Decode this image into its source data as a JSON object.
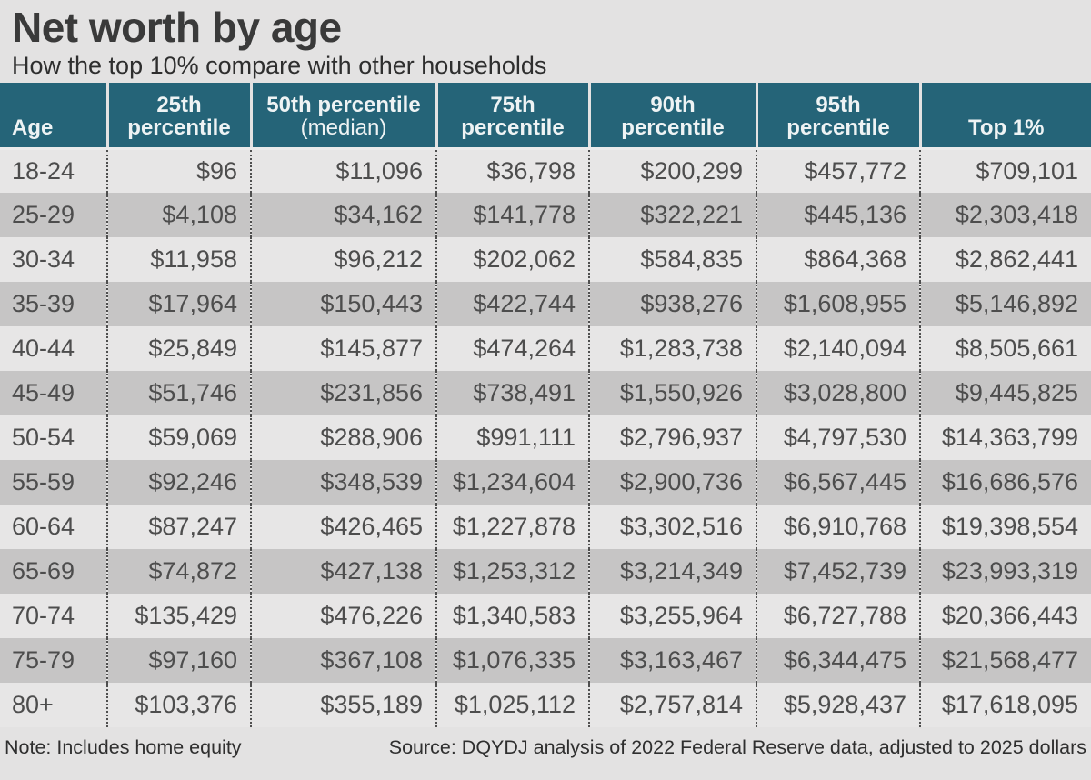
{
  "colors": {
    "page_bg": "#e3e2e2",
    "header_bg": "#256478",
    "row_light": "#e7e6e6",
    "row_dark": "#c6c5c5",
    "header_text": "#eef3f4",
    "body_text": "#4d4d4d"
  },
  "chart_data": {
    "type": "table",
    "title": "Net worth by age",
    "subtitle": "How the top 10% compare with other households",
    "columns": [
      "Age",
      "25th percentile",
      "50th percentile (median)",
      "75th percentile",
      "90th percentile",
      "95th percentile",
      "Top 1%"
    ],
    "rows": [
      [
        "18-24",
        "$96",
        "$11,096",
        "$36,798",
        "$200,299",
        "$457,772",
        "$709,101"
      ],
      [
        "25-29",
        "$4,108",
        "$34,162",
        "$141,778",
        "$322,221",
        "$445,136",
        "$2,303,418"
      ],
      [
        "30-34",
        "$11,958",
        "$96,212",
        "$202,062",
        "$584,835",
        "$864,368",
        "$2,862,441"
      ],
      [
        "35-39",
        "$17,964",
        "$150,443",
        "$422,744",
        "$938,276",
        "$1,608,955",
        "$5,146,892"
      ],
      [
        "40-44",
        "$25,849",
        "$145,877",
        "$474,264",
        "$1,283,738",
        "$2,140,094",
        "$8,505,661"
      ],
      [
        "45-49",
        "$51,746",
        "$231,856",
        "$738,491",
        "$1,550,926",
        "$3,028,800",
        "$9,445,825"
      ],
      [
        "50-54",
        "$59,069",
        "$288,906",
        "$991,111",
        "$2,796,937",
        "$4,797,530",
        "$14,363,799"
      ],
      [
        "55-59",
        "$92,246",
        "$348,539",
        "$1,234,604",
        "$2,900,736",
        "$6,567,445",
        "$16,686,576"
      ],
      [
        "60-64",
        "$87,247",
        "$426,465",
        "$1,227,878",
        "$3,302,516",
        "$6,910,768",
        "$19,398,554"
      ],
      [
        "65-69",
        "$74,872",
        "$427,138",
        "$1,253,312",
        "$3,214,349",
        "$7,452,739",
        "$23,993,319"
      ],
      [
        "70-74",
        "$135,429",
        "$476,226",
        "$1,340,583",
        "$3,255,964",
        "$6,727,788",
        "$20,366,443"
      ],
      [
        "75-79",
        "$97,160",
        "$367,108",
        "$1,076,335",
        "$3,163,467",
        "$6,344,475",
        "$21,568,477"
      ],
      [
        "80+",
        "$103,376",
        "$355,189",
        "$1,025,112",
        "$2,757,814",
        "$5,928,437",
        "$17,618,095"
      ]
    ],
    "note": "Note: Includes home equity",
    "source": "Source: DQYDJ analysis of 2022 Federal Reserve data, adjusted to 2025 dollars",
    "layout_hints": {
      "header_position": "top",
      "striped_rows": true,
      "column_separators": "dotted"
    }
  },
  "presentation": {
    "header_columns": [
      {
        "id": "age",
        "lines": [
          "Age"
        ]
      },
      {
        "id": "p25",
        "lines": [
          "25th",
          "percentile"
        ]
      },
      {
        "id": "p50",
        "lines": [
          "50th percentile",
          "(median)"
        ],
        "sub_regular": true
      },
      {
        "id": "p75",
        "lines": [
          "75th",
          "percentile"
        ]
      },
      {
        "id": "p90",
        "lines": [
          "90th",
          "percentile"
        ]
      },
      {
        "id": "p95",
        "lines": [
          "95th",
          "percentile"
        ]
      },
      {
        "id": "top1",
        "lines": [
          "Top 1%"
        ]
      }
    ]
  }
}
